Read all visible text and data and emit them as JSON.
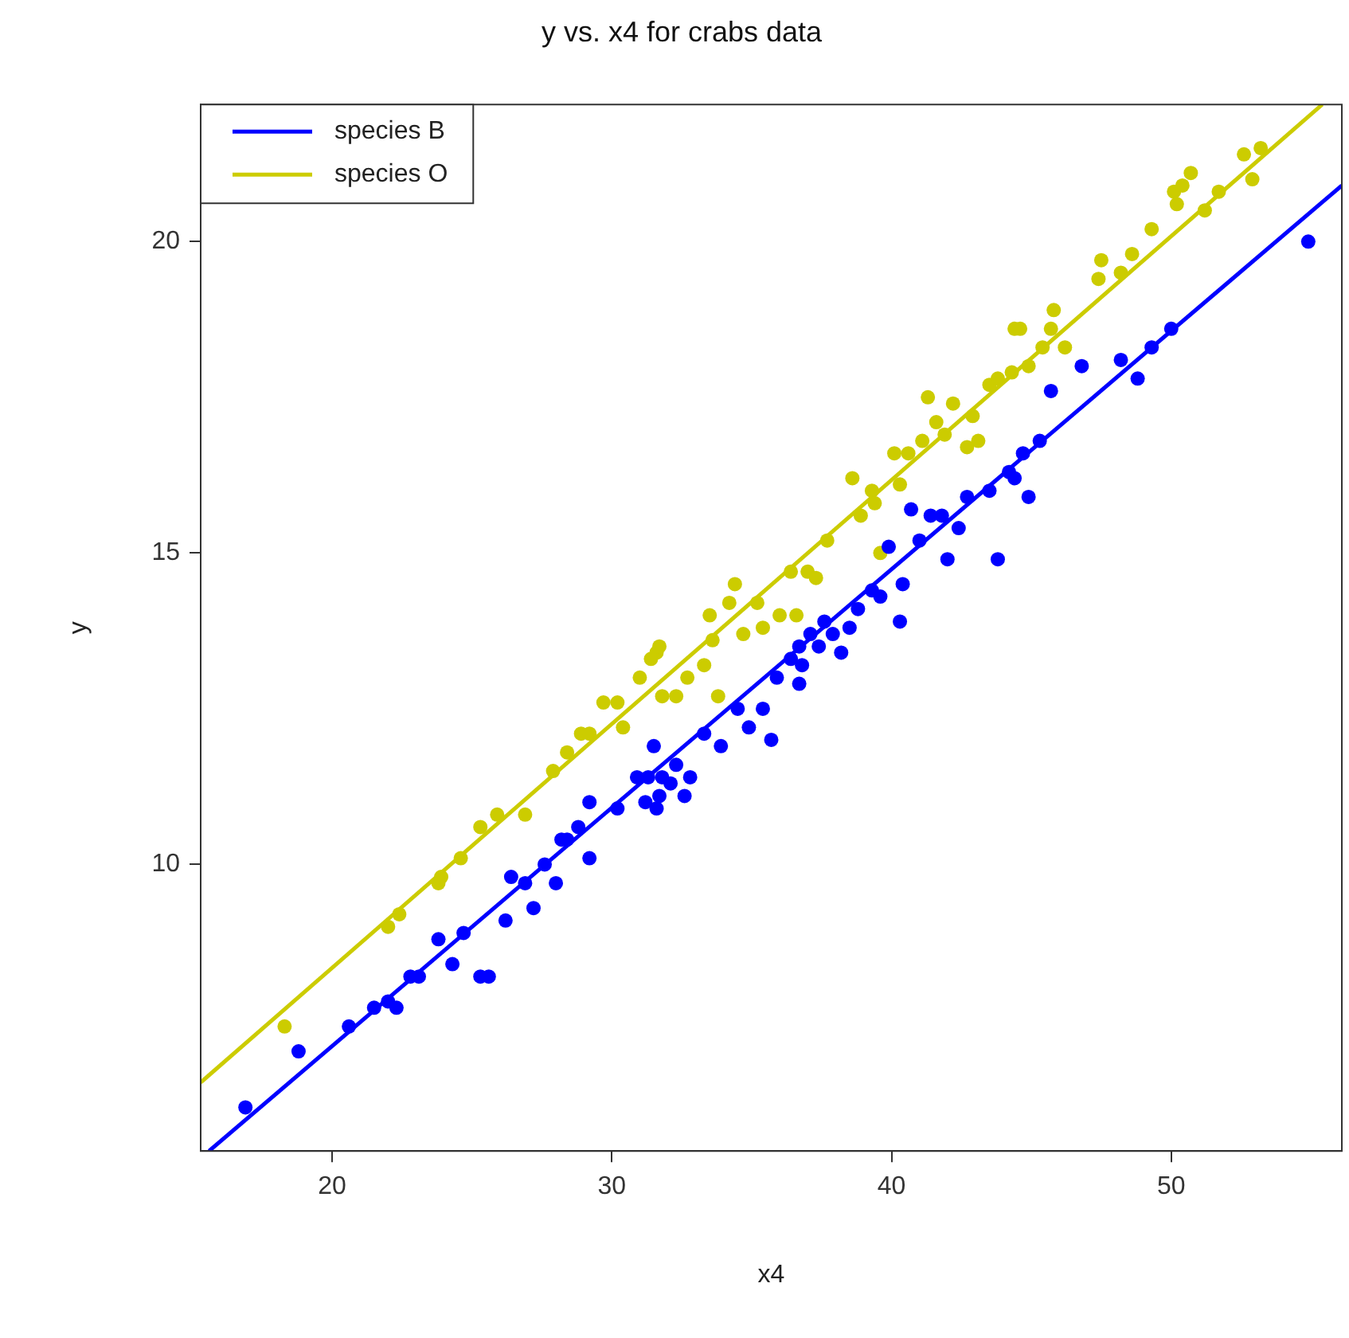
{
  "chart_data": {
    "type": "scatter",
    "title": "y vs. x4 for crabs data",
    "xlabel": "x4",
    "ylabel": "y",
    "xlim": [
      15.3,
      56.1
    ],
    "ylim": [
      5.4,
      22.2
    ],
    "xticks": [
      20,
      30,
      40,
      50
    ],
    "yticks": [
      10,
      15,
      20
    ],
    "grid": false,
    "legend": "top left",
    "marker": "circle",
    "series": [
      {
        "color": "#0000ff",
        "x": [
          16.9,
          18.8,
          20.6,
          21.5,
          22.0,
          22.3,
          22.8,
          23.1,
          23.8,
          24.3,
          24.7,
          25.3,
          25.6,
          26.2,
          26.4,
          26.9,
          27.2,
          27.6,
          28.0,
          28.2,
          28.4,
          28.8,
          29.2,
          29.2,
          30.2,
          30.9,
          31.2,
          31.3,
          31.5,
          31.6,
          31.7,
          31.8,
          32.1,
          32.3,
          32.6,
          32.8,
          33.3,
          33.9,
          34.5,
          34.9,
          35.4,
          35.7,
          35.9,
          36.4,
          36.7,
          36.8,
          36.7,
          37.1,
          37.4,
          37.6,
          37.9,
          38.2,
          38.5,
          38.8,
          39.3,
          39.6,
          39.9,
          40.3,
          40.4,
          40.7,
          41.0,
          41.4,
          41.8,
          42.0,
          42.4,
          42.7,
          43.5,
          43.8,
          44.2,
          44.4,
          44.7,
          44.9,
          45.3,
          45.7,
          46.8,
          48.2,
          48.8,
          49.3,
          50.0,
          54.9
        ],
        "values": [
          6.1,
          7.0,
          7.4,
          7.7,
          7.8,
          7.7,
          8.2,
          8.2,
          8.8,
          8.4,
          8.9,
          8.2,
          8.2,
          9.1,
          9.8,
          9.7,
          9.3,
          10.0,
          9.7,
          10.4,
          10.4,
          10.6,
          10.1,
          11.0,
          10.9,
          11.4,
          11.0,
          11.4,
          11.9,
          10.9,
          11.1,
          11.4,
          11.3,
          11.6,
          11.1,
          11.4,
          12.1,
          11.9,
          12.5,
          12.2,
          12.5,
          12.0,
          13.0,
          13.3,
          13.5,
          13.2,
          12.9,
          13.7,
          13.5,
          13.9,
          13.7,
          13.4,
          13.8,
          14.1,
          14.4,
          14.3,
          15.1,
          13.9,
          14.5,
          15.7,
          15.2,
          15.6,
          15.6,
          14.9,
          15.4,
          15.9,
          16.0,
          14.9,
          16.3,
          16.2,
          16.6,
          15.9,
          16.8,
          17.6,
          18.0,
          18.1,
          17.8,
          18.3,
          18.6,
          20.0
        ]
      },
      {
        "color": "#cccc00",
        "x": [
          18.3,
          22.0,
          22.4,
          23.8,
          23.9,
          24.6,
          25.3,
          25.9,
          26.9,
          27.9,
          28.4,
          28.9,
          29.2,
          29.7,
          30.4,
          30.2,
          31.0,
          31.4,
          31.6,
          31.7,
          31.8,
          32.3,
          32.7,
          33.3,
          33.5,
          33.6,
          33.8,
          34.2,
          34.4,
          34.7,
          35.2,
          35.4,
          36.0,
          36.4,
          36.6,
          37.0,
          37.3,
          37.7,
          38.6,
          38.9,
          39.3,
          39.4,
          39.6,
          40.1,
          40.3,
          40.6,
          41.1,
          41.3,
          41.6,
          41.9,
          42.2,
          42.7,
          42.9,
          43.1,
          43.5,
          43.8,
          44.3,
          44.4,
          44.6,
          44.9,
          45.4,
          45.7,
          45.8,
          46.2,
          47.4,
          47.5,
          48.2,
          48.6,
          49.3,
          50.1,
          50.2,
          50.4,
          50.7,
          51.2,
          51.7,
          52.6,
          52.9,
          53.2
        ],
        "values": [
          7.4,
          9.0,
          9.2,
          9.7,
          9.8,
          10.1,
          10.6,
          10.8,
          10.8,
          11.5,
          11.8,
          12.1,
          12.1,
          12.6,
          12.2,
          12.6,
          13.0,
          13.3,
          13.4,
          13.5,
          12.7,
          12.7,
          13.0,
          13.2,
          14.0,
          13.6,
          12.7,
          14.2,
          14.5,
          13.7,
          14.2,
          13.8,
          14.0,
          14.7,
          14.0,
          14.7,
          14.6,
          15.2,
          16.2,
          15.6,
          16.0,
          15.8,
          15.0,
          16.6,
          16.1,
          16.6,
          16.8,
          17.5,
          17.1,
          16.9,
          17.4,
          16.7,
          17.2,
          16.8,
          17.7,
          17.8,
          17.9,
          18.6,
          18.6,
          18.0,
          18.3,
          18.6,
          18.9,
          18.3,
          19.4,
          19.7,
          19.5,
          19.8,
          20.2,
          20.8,
          20.6,
          20.9,
          21.1,
          20.5,
          20.8,
          21.4,
          21.0,
          21.5
        ]
      },
      {
        "name": "species B",
        "type": "line",
        "marker": "none",
        "color": "#0000ff",
        "x": [
          15.6,
          56.1
        ],
        "values": [
          5.4,
          20.9
        ]
      },
      {
        "name": "species O",
        "type": "line",
        "marker": "none",
        "color": "#cccc00",
        "x": [
          15.3,
          55.4
        ],
        "values": [
          6.5,
          22.2
        ]
      }
    ]
  }
}
